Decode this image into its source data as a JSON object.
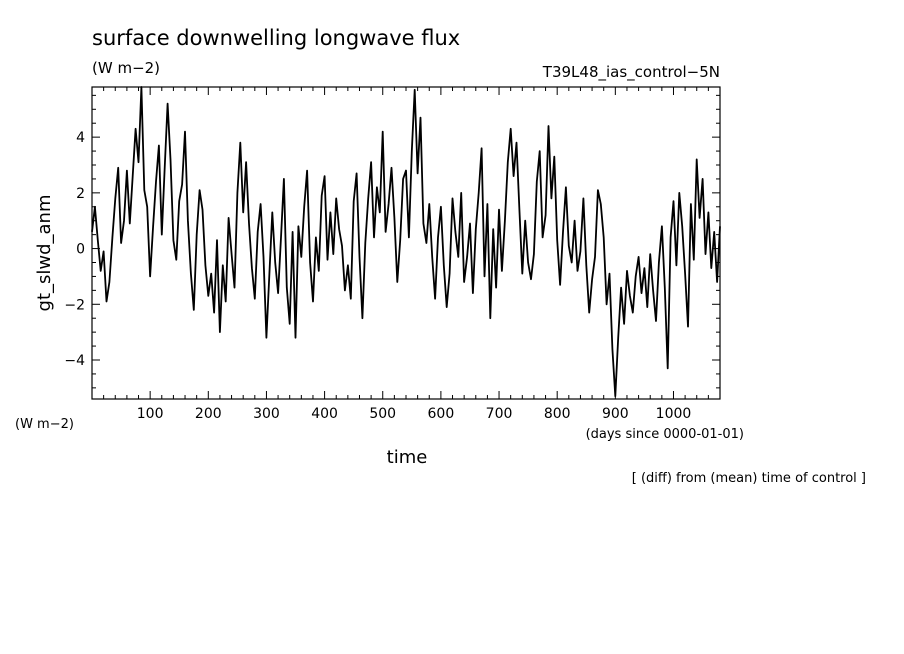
{
  "colors": {
    "line": "#000000",
    "background": "#ffffff"
  },
  "texts": {
    "title": "surface downwelling longwave flux",
    "units_top": "(W m−2)",
    "run_name": "T39L48_ias_control−5N",
    "units_left": "(W m−2)",
    "xlabel": "time",
    "x_units": "(days since 0000-01-01)",
    "note": "[ (diff) from (mean) time of control ]"
  },
  "chart_data": {
    "type": "line",
    "title": "surface downwelling longwave flux",
    "xlabel": "time",
    "ylabel": "gt_slwd_anm",
    "xlim": [
      0,
      1080
    ],
    "ylim": [
      -5.4,
      5.8
    ],
    "grid": false,
    "xticks": [
      100,
      200,
      300,
      400,
      500,
      600,
      700,
      800,
      900,
      1000
    ],
    "yticks": [
      -4,
      -2,
      0,
      2,
      4
    ],
    "series": [
      {
        "values_x": [
          0,
          5,
          10,
          15,
          20,
          25,
          30,
          35,
          40,
          45,
          50,
          55,
          60,
          65,
          70,
          75,
          80,
          85,
          90,
          95,
          100,
          105,
          110,
          115,
          120,
          125,
          130,
          135,
          140,
          145,
          150,
          155,
          160,
          165,
          170,
          175,
          180,
          185,
          190,
          195,
          200,
          205,
          210,
          215,
          220,
          225,
          230,
          235,
          240,
          245,
          250,
          255,
          260,
          265,
          270,
          275,
          280,
          285,
          290,
          295,
          300,
          305,
          310,
          315,
          320,
          325,
          330,
          335,
          340,
          345,
          350,
          355,
          360,
          365,
          370,
          375,
          380,
          385,
          390,
          395,
          400,
          405,
          410,
          415,
          420,
          425,
          430,
          435,
          440,
          445,
          450,
          455,
          460,
          465,
          470,
          475,
          480,
          485,
          490,
          495,
          500,
          505,
          510,
          515,
          520,
          525,
          530,
          535,
          540,
          545,
          550,
          555,
          560,
          565,
          570,
          575,
          580,
          585,
          590,
          595,
          600,
          605,
          610,
          615,
          620,
          625,
          630,
          635,
          640,
          645,
          650,
          655,
          660,
          665,
          670,
          675,
          680,
          685,
          690,
          695,
          700,
          705,
          710,
          715,
          720,
          725,
          730,
          735,
          740,
          745,
          750,
          755,
          760,
          765,
          770,
          775,
          780,
          785,
          790,
          795,
          800,
          805,
          810,
          815,
          820,
          825,
          830,
          835,
          840,
          845,
          850,
          855,
          860,
          865,
          870,
          875,
          880,
          885,
          890,
          895,
          900,
          905,
          910,
          915,
          920,
          925,
          930,
          935,
          940,
          945,
          950,
          955,
          960,
          965,
          970,
          975,
          980,
          985,
          990,
          995,
          1000,
          1005,
          1010,
          1015,
          1020,
          1025,
          1030,
          1035,
          1040,
          1045,
          1050,
          1055,
          1060,
          1065,
          1070,
          1075,
          1080
        ],
        "values_y": [
          0.6,
          1.5,
          0.3,
          -0.8,
          -0.1,
          -1.9,
          -1.2,
          0.4,
          1.8,
          2.9,
          0.2,
          1.0,
          2.8,
          0.9,
          2.6,
          4.3,
          3.1,
          5.8,
          2.1,
          1.5,
          -1.0,
          0.8,
          2.4,
          3.7,
          0.5,
          2.9,
          5.2,
          3.2,
          0.3,
          -0.4,
          1.7,
          2.3,
          4.2,
          1.0,
          -0.9,
          -2.2,
          0.5,
          2.1,
          1.4,
          -0.6,
          -1.7,
          -0.9,
          -2.3,
          0.3,
          -3.0,
          -0.6,
          -1.9,
          1.1,
          -0.2,
          -1.4,
          2.0,
          3.8,
          1.3,
          3.1,
          0.9,
          -0.7,
          -1.8,
          0.6,
          1.6,
          -0.3,
          -3.2,
          -0.9,
          1.3,
          -0.5,
          -1.6,
          0.4,
          2.5,
          -1.4,
          -2.7,
          0.6,
          -3.2,
          0.8,
          -0.3,
          1.5,
          2.8,
          -0.5,
          -1.9,
          0.4,
          -0.8,
          1.9,
          2.6,
          -0.4,
          1.3,
          -0.2,
          1.8,
          0.7,
          0.1,
          -1.5,
          -0.6,
          -1.8,
          1.7,
          2.7,
          -0.3,
          -2.5,
          0.2,
          1.8,
          3.1,
          0.4,
          2.2,
          1.3,
          4.2,
          0.6,
          1.6,
          2.9,
          1.1,
          -1.2,
          0.3,
          2.5,
          2.8,
          0.4,
          3.5,
          5.7,
          2.7,
          4.7,
          0.9,
          0.2,
          1.6,
          -0.3,
          -1.8,
          0.4,
          1.5,
          -0.6,
          -2.1,
          -0.9,
          1.8,
          0.6,
          -0.3,
          2.0,
          -1.2,
          -0.3,
          0.9,
          -1.6,
          0.7,
          2.0,
          3.6,
          -1.0,
          1.6,
          -2.5,
          0.7,
          -1.4,
          1.4,
          -0.8,
          1.0,
          3.1,
          4.3,
          2.6,
          3.8,
          1.4,
          -0.9,
          1.0,
          -0.5,
          -1.1,
          -0.2,
          2.4,
          3.5,
          0.4,
          1.2,
          4.4,
          1.8,
          3.3,
          0.3,
          -1.3,
          0.6,
          2.2,
          0.1,
          -0.5,
          1.0,
          -0.8,
          -0.1,
          1.8,
          -0.6,
          -2.3,
          -1.1,
          -0.3,
          2.1,
          1.6,
          0.4,
          -2.0,
          -0.9,
          -3.6,
          -5.3,
          -3.2,
          -1.4,
          -2.7,
          -0.8,
          -1.7,
          -2.3,
          -1.0,
          -0.3,
          -1.6,
          -0.7,
          -2.1,
          -0.2,
          -1.5,
          -2.6,
          -0.5,
          0.8,
          -1.4,
          -4.3,
          0.4,
          1.7,
          -0.6,
          2.0,
          0.8,
          -0.9,
          -2.8,
          1.6,
          -0.4,
          3.2,
          1.1,
          2.5,
          -0.2,
          1.3,
          -0.7,
          0.6,
          -1.2,
          0.8
        ]
      }
    ]
  }
}
